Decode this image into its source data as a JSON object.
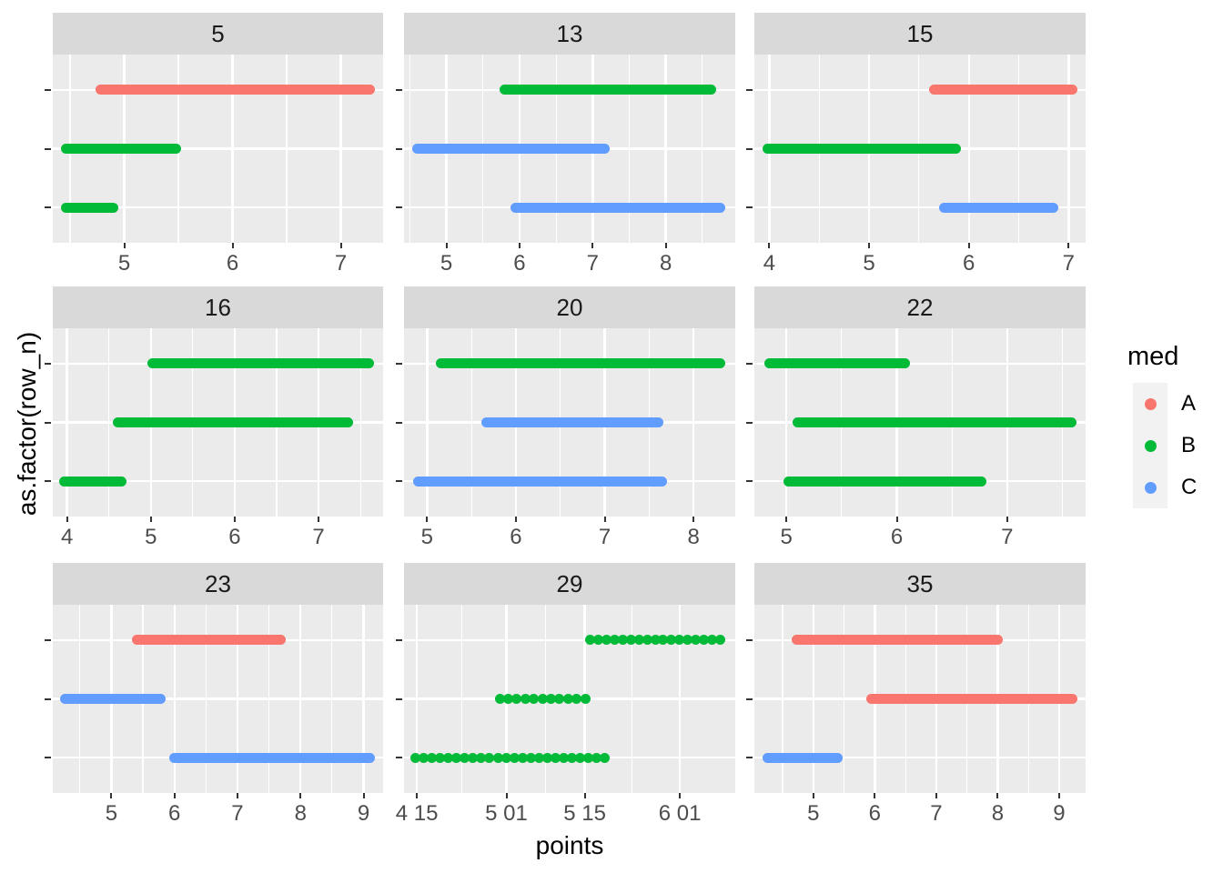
{
  "figure": {
    "xlabel": "points",
    "ylabel": "as.factor(row_n)",
    "legend": {
      "title": "med",
      "entries": [
        {
          "label": "A",
          "color": "#F8766D"
        },
        {
          "label": "B",
          "color": "#00BA38"
        },
        {
          "label": "C",
          "color": "#619CFF"
        }
      ]
    },
    "colors": {
      "panel_background": "#EBEBEB",
      "strip_background": "#D9D9D9",
      "gridline": "#FFFFFF",
      "axis_text": "#4D4D4D",
      "tick_mark": "#333333",
      "legend_key_background": "#F2F2F2"
    }
  },
  "chart_data": {
    "type": "scatter",
    "subtype": "faceted horizontal runs of points (ggplot2 facet_wrap, free scales)",
    "title": "",
    "xlabel": "points",
    "ylabel": "as.factor(row_n)",
    "legend_position": "right",
    "grid": true,
    "y_levels_per_facet": [
      1,
      2,
      3
    ],
    "y_level_fractions_top_to_bottom": [
      0.1875,
      0.5,
      0.8125
    ],
    "facets": [
      {
        "label": "5",
        "col": 0,
        "row": 0,
        "xlim": [
          4.34,
          7.39
        ],
        "ticks": [
          {
            "v": 5,
            "t": "5"
          },
          {
            "v": 6,
            "t": "6"
          },
          {
            "v": 7,
            "t": "7"
          }
        ],
        "minor": [
          4.5,
          5.5,
          6.5
        ],
        "dotted": false,
        "segments": [
          {
            "row": 3,
            "med": "A",
            "x0": 4.78,
            "x1": 7.27
          },
          {
            "row": 2,
            "med": "B",
            "x0": 4.46,
            "x1": 5.48
          },
          {
            "row": 1,
            "med": "B",
            "x0": 4.46,
            "x1": 4.9
          }
        ]
      },
      {
        "label": "13",
        "col": 1,
        "row": 0,
        "xlim": [
          4.42,
          8.95
        ],
        "ticks": [
          {
            "v": 5,
            "t": "5"
          },
          {
            "v": 6,
            "t": "6"
          },
          {
            "v": 7,
            "t": "7"
          },
          {
            "v": 8,
            "t": "8"
          }
        ],
        "minor": [
          4.5,
          5.5,
          6.5,
          7.5,
          8.5
        ],
        "dotted": false,
        "segments": [
          {
            "row": 3,
            "med": "B",
            "x0": 5.8,
            "x1": 8.62
          },
          {
            "row": 2,
            "med": "C",
            "x0": 4.6,
            "x1": 7.17
          },
          {
            "row": 1,
            "med": "C",
            "x0": 5.95,
            "x1": 8.75
          }
        ]
      },
      {
        "label": "15",
        "col": 2,
        "row": 0,
        "xlim": [
          3.85,
          7.17
        ],
        "ticks": [
          {
            "v": 4,
            "t": "4"
          },
          {
            "v": 5,
            "t": "5"
          },
          {
            "v": 6,
            "t": "6"
          },
          {
            "v": 7,
            "t": "7"
          }
        ],
        "minor": [
          4.5,
          5.5,
          6.5
        ],
        "dotted": false,
        "segments": [
          {
            "row": 3,
            "med": "A",
            "x0": 5.65,
            "x1": 7.04
          },
          {
            "row": 2,
            "med": "B",
            "x0": 3.98,
            "x1": 5.87
          },
          {
            "row": 1,
            "med": "C",
            "x0": 5.75,
            "x1": 6.85
          }
        ]
      },
      {
        "label": "16",
        "col": 0,
        "row": 1,
        "xlim": [
          3.83,
          7.77
        ],
        "ticks": [
          {
            "v": 4,
            "t": "4"
          },
          {
            "v": 5,
            "t": "5"
          },
          {
            "v": 6,
            "t": "6"
          },
          {
            "v": 7,
            "t": "7"
          }
        ],
        "minor": [
          4.5,
          5.5,
          6.5,
          7.5
        ],
        "dotted": false,
        "segments": [
          {
            "row": 3,
            "med": "B",
            "x0": 5.02,
            "x1": 7.6
          },
          {
            "row": 2,
            "med": "B",
            "x0": 4.61,
            "x1": 7.35
          },
          {
            "row": 1,
            "med": "B",
            "x0": 3.97,
            "x1": 4.65
          }
        ]
      },
      {
        "label": "20",
        "col": 1,
        "row": 1,
        "xlim": [
          4.74,
          8.47
        ],
        "ticks": [
          {
            "v": 5,
            "t": "5"
          },
          {
            "v": 6,
            "t": "6"
          },
          {
            "v": 7,
            "t": "7"
          },
          {
            "v": 8,
            "t": "8"
          }
        ],
        "minor": [
          5.5,
          6.5,
          7.5
        ],
        "dotted": false,
        "segments": [
          {
            "row": 3,
            "med": "B",
            "x0": 5.15,
            "x1": 8.3
          },
          {
            "row": 2,
            "med": "C",
            "x0": 5.67,
            "x1": 7.6
          },
          {
            "row": 1,
            "med": "C",
            "x0": 4.9,
            "x1": 7.65
          }
        ]
      },
      {
        "label": "22",
        "col": 2,
        "row": 1,
        "xlim": [
          4.71,
          7.71
        ],
        "ticks": [
          {
            "v": 5,
            "t": "5"
          },
          {
            "v": 6,
            "t": "6"
          },
          {
            "v": 7,
            "t": "7"
          }
        ],
        "minor": [
          5.5,
          6.5,
          7.5
        ],
        "dotted": false,
        "segments": [
          {
            "row": 3,
            "med": "B",
            "x0": 4.85,
            "x1": 6.07
          },
          {
            "row": 2,
            "med": "B",
            "x0": 5.1,
            "x1": 7.58
          },
          {
            "row": 1,
            "med": "B",
            "x0": 5.02,
            "x1": 6.77
          }
        ]
      },
      {
        "label": "23",
        "col": 0,
        "row": 2,
        "xlim": [
          4.07,
          9.31
        ],
        "ticks": [
          {
            "v": 5,
            "t": "5"
          },
          {
            "v": 6,
            "t": "6"
          },
          {
            "v": 7,
            "t": "7"
          },
          {
            "v": 8,
            "t": "8"
          },
          {
            "v": 9,
            "t": "9"
          }
        ],
        "minor": [
          4.5,
          5.5,
          6.5,
          7.5,
          8.5
        ],
        "dotted": false,
        "segments": [
          {
            "row": 3,
            "med": "A",
            "x0": 5.4,
            "x1": 7.68
          },
          {
            "row": 2,
            "med": "C",
            "x0": 4.26,
            "x1": 5.78
          },
          {
            "row": 1,
            "med": "C",
            "x0": 6.0,
            "x1": 9.1
          }
        ]
      },
      {
        "label": "29",
        "col": 1,
        "row": 2,
        "xlim": [
          102.7,
          161.9
        ],
        "ticks": [
          {
            "v": 105,
            "t": "4 15"
          },
          {
            "v": 121,
            "t": "5 01"
          },
          {
            "v": 135,
            "t": "5 15"
          },
          {
            "v": 152,
            "t": "6 01"
          }
        ],
        "minor": [
          113,
          128,
          143.5
        ],
        "dotted": true,
        "segments": [
          {
            "row": 3,
            "med": "B",
            "x0": 136.0,
            "x1": 159.2
          },
          {
            "row": 2,
            "med": "B",
            "x0": 119.8,
            "x1": 135.1
          },
          {
            "row": 1,
            "med": "B",
            "x0": 104.8,
            "x1": 138.5
          }
        ]
      },
      {
        "label": "35",
        "col": 2,
        "row": 2,
        "xlim": [
          4.04,
          9.43
        ],
        "ticks": [
          {
            "v": 5,
            "t": "5"
          },
          {
            "v": 6,
            "t": "6"
          },
          {
            "v": 7,
            "t": "7"
          },
          {
            "v": 8,
            "t": "8"
          },
          {
            "v": 9,
            "t": "9"
          }
        ],
        "minor": [
          4.5,
          5.5,
          6.5,
          7.5,
          8.5
        ],
        "dotted": false,
        "segments": [
          {
            "row": 3,
            "med": "A",
            "x0": 4.73,
            "x1": 8.0
          },
          {
            "row": 2,
            "med": "A",
            "x0": 5.94,
            "x1": 9.21
          },
          {
            "row": 1,
            "med": "C",
            "x0": 4.25,
            "x1": 5.4
          }
        ]
      }
    ]
  }
}
